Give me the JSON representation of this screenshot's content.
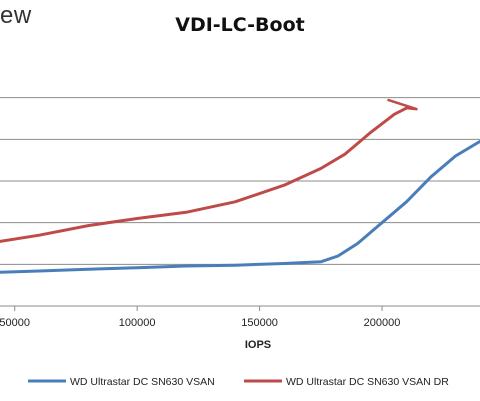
{
  "brand": {
    "logo_partial": "ew"
  },
  "chart_data": {
    "type": "line",
    "title": "VDI-LC-Boot",
    "xlabel": "IOPS",
    "ylabel": "",
    "xlim": [
      44000,
      240000
    ],
    "ylim": [
      0,
      6
    ],
    "x_ticks": [
      50000,
      100000,
      150000,
      200000
    ],
    "x_tick_labels": [
      "50000",
      "100000",
      "150000",
      "200000"
    ],
    "grid": {
      "horizontal": true,
      "vertical": false,
      "y_lines": [
        1,
        2,
        3,
        4,
        5
      ]
    },
    "legend_position": "bottom",
    "series": [
      {
        "name": "WD Ultrastar DC SN630 VSAN",
        "color": "#4a7ebb",
        "points": [
          [
            44000,
            0.81
          ],
          [
            60000,
            0.84
          ],
          [
            80000,
            0.88
          ],
          [
            100000,
            0.92
          ],
          [
            120000,
            0.96
          ],
          [
            140000,
            0.98
          ],
          [
            160000,
            1.02
          ],
          [
            175000,
            1.06
          ],
          [
            182000,
            1.2
          ],
          [
            190000,
            1.5
          ],
          [
            200000,
            2.0
          ],
          [
            210000,
            2.5
          ],
          [
            220000,
            3.1
          ],
          [
            230000,
            3.6
          ],
          [
            240000,
            3.95
          ]
        ]
      },
      {
        "name": "WD Ultrastar DC SN630 VSAN DR",
        "color": "#be4b48",
        "points": [
          [
            44000,
            1.55
          ],
          [
            60000,
            1.7
          ],
          [
            80000,
            1.93
          ],
          [
            100000,
            2.1
          ],
          [
            120000,
            2.25
          ],
          [
            140000,
            2.5
          ],
          [
            160000,
            2.9
          ],
          [
            175000,
            3.3
          ],
          [
            185000,
            3.65
          ],
          [
            195000,
            4.15
          ],
          [
            205000,
            4.6
          ],
          [
            210000,
            4.75
          ]
        ]
      }
    ]
  }
}
